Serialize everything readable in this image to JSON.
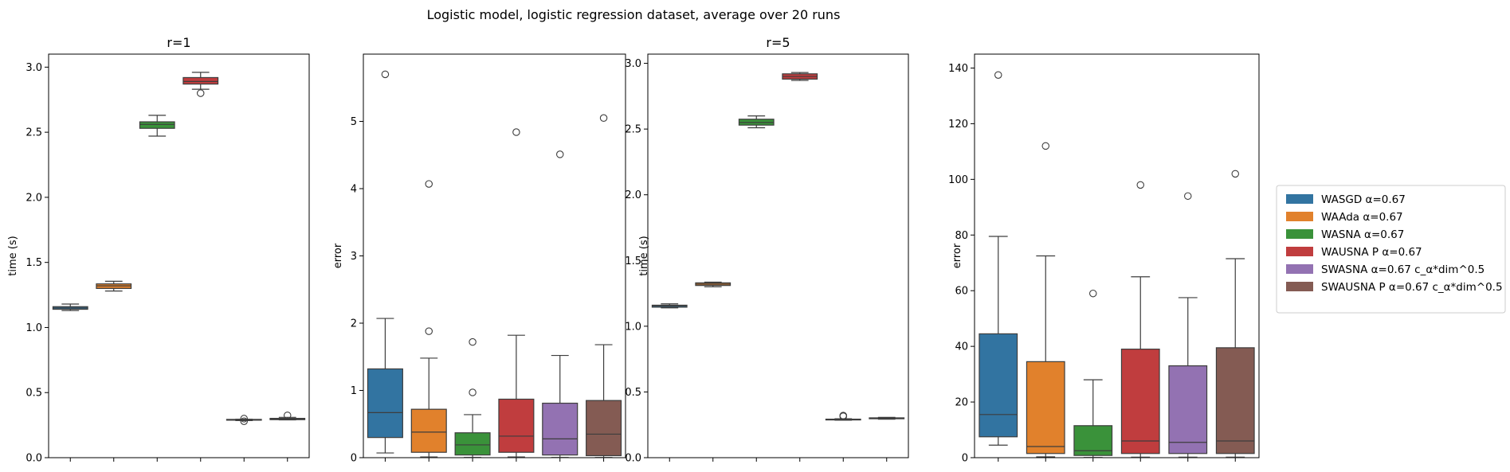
{
  "suptitle": "Logistic model, logistic regression dataset, average over 20 runs",
  "legend": {
    "placement": "right",
    "entries": [
      "WASGD α=0.67",
      "WAAda α=0.67",
      "WASNA α=0.67",
      "WAUSNA P α=0.67",
      "SWASNA α=0.67 c_α*dim^0.5",
      "SWAUSNA P α=0.67 c_α*dim^0.5"
    ]
  },
  "colors": [
    "#3274a1",
    "#e1812c",
    "#3a923a",
    "#c03d3e",
    "#9372b2",
    "#845b53"
  ],
  "chart_data": [
    {
      "type": "box",
      "title": "r=1",
      "xlabel": "",
      "ylabel": "time (s)",
      "ylim": [
        0,
        3.1
      ],
      "yticks": [
        0.0,
        0.5,
        1.0,
        1.5,
        2.0,
        2.5,
        3.0
      ],
      "tick_labels": [
        "0.0",
        "0.5",
        "1.0",
        "1.5",
        "2.0",
        "2.5",
        "3.0"
      ],
      "boxes": [
        {
          "whislo": 1.13,
          "q1": 1.14,
          "med": 1.15,
          "q3": 1.16,
          "whishi": 1.18,
          "fliers": []
        },
        {
          "whislo": 1.28,
          "q1": 1.3,
          "med": 1.32,
          "q3": 1.335,
          "whishi": 1.355,
          "fliers": []
        },
        {
          "whislo": 2.47,
          "q1": 2.53,
          "med": 2.56,
          "q3": 2.58,
          "whishi": 2.63,
          "fliers": []
        },
        {
          "whislo": 2.83,
          "q1": 2.87,
          "med": 2.89,
          "q3": 2.92,
          "whishi": 2.96,
          "fliers": [
            2.8
          ]
        },
        {
          "whislo": 0.285,
          "q1": 0.288,
          "med": 0.29,
          "q3": 0.292,
          "whishi": 0.295,
          "fliers": [
            0.3,
            0.28
          ]
        },
        {
          "whislo": 0.29,
          "q1": 0.292,
          "med": 0.297,
          "q3": 0.302,
          "whishi": 0.31,
          "fliers": [
            0.325
          ]
        }
      ]
    },
    {
      "type": "box",
      "title": "",
      "xlabel": "",
      "ylabel": "error",
      "ylim": [
        0,
        6.0
      ],
      "yticks": [
        0,
        1,
        2,
        3,
        4,
        5
      ],
      "tick_labels": [
        "0",
        "1",
        "2",
        "3",
        "4",
        "5"
      ],
      "boxes": [
        {
          "whislo": 0.07,
          "q1": 0.3,
          "med": 0.67,
          "q3": 1.32,
          "whishi": 2.07,
          "fliers": [
            5.7
          ]
        },
        {
          "whislo": 0.01,
          "q1": 0.08,
          "med": 0.38,
          "q3": 0.72,
          "whishi": 1.48,
          "fliers": [
            1.88,
            4.07
          ]
        },
        {
          "whislo": 0.005,
          "q1": 0.04,
          "med": 0.19,
          "q3": 0.37,
          "whishi": 0.64,
          "fliers": [
            0.97,
            1.72
          ]
        },
        {
          "whislo": 0.01,
          "q1": 0.08,
          "med": 0.32,
          "q3": 0.87,
          "whishi": 1.82,
          "fliers": [
            4.84
          ]
        },
        {
          "whislo": 0.005,
          "q1": 0.04,
          "med": 0.28,
          "q3": 0.81,
          "whishi": 1.52,
          "fliers": [
            4.51
          ]
        },
        {
          "whislo": 0.005,
          "q1": 0.03,
          "med": 0.35,
          "q3": 0.85,
          "whishi": 1.68,
          "fliers": [
            5.05
          ]
        }
      ]
    },
    {
      "type": "box",
      "title": "r=5",
      "xlabel": "",
      "ylabel": "time (s)",
      "ylim": [
        0,
        3.07
      ],
      "yticks": [
        0.0,
        0.5,
        1.0,
        1.5,
        2.0,
        2.5,
        3.0
      ],
      "tick_labels": [
        "0.0",
        "0.5",
        "1.0",
        "1.5",
        "2.0",
        "2.5",
        "3.0"
      ],
      "boxes": [
        {
          "whislo": 1.14,
          "q1": 1.145,
          "med": 1.155,
          "q3": 1.16,
          "whishi": 1.17,
          "fliers": []
        },
        {
          "whislo": 1.3,
          "q1": 1.31,
          "med": 1.32,
          "q3": 1.33,
          "whishi": 1.335,
          "fliers": []
        },
        {
          "whislo": 2.51,
          "q1": 2.53,
          "med": 2.55,
          "q3": 2.575,
          "whishi": 2.6,
          "fliers": []
        },
        {
          "whislo": 2.87,
          "q1": 2.88,
          "med": 2.9,
          "q3": 2.92,
          "whishi": 2.93,
          "fliers": []
        },
        {
          "whislo": 0.285,
          "q1": 0.287,
          "med": 0.29,
          "q3": 0.293,
          "whishi": 0.296,
          "fliers": [
            0.32,
            0.315
          ]
        },
        {
          "whislo": 0.293,
          "q1": 0.296,
          "med": 0.3,
          "q3": 0.303,
          "whishi": 0.307,
          "fliers": []
        }
      ]
    },
    {
      "type": "box",
      "title": "",
      "xlabel": "",
      "ylabel": "error",
      "ylim": [
        0,
        145
      ],
      "yticks": [
        0,
        20,
        40,
        60,
        80,
        100,
        120,
        140
      ],
      "tick_labels": [
        "0",
        "20",
        "40",
        "60",
        "80",
        "100",
        "120",
        "140"
      ],
      "boxes": [
        {
          "whislo": 4.5,
          "q1": 7.5,
          "med": 15.5,
          "q3": 44.5,
          "whishi": 79.5,
          "fliers": [
            137.5
          ]
        },
        {
          "whislo": 0.3,
          "q1": 1.5,
          "med": 4.0,
          "q3": 34.5,
          "whishi": 72.5,
          "fliers": [
            112
          ]
        },
        {
          "whislo": 0.1,
          "q1": 0.8,
          "med": 2.5,
          "q3": 11.5,
          "whishi": 28,
          "fliers": [
            59
          ]
        },
        {
          "whislo": 0.2,
          "q1": 1.5,
          "med": 6.0,
          "q3": 39,
          "whishi": 65,
          "fliers": [
            98
          ]
        },
        {
          "whislo": 0.2,
          "q1": 1.5,
          "med": 5.5,
          "q3": 33,
          "whishi": 57.5,
          "fliers": [
            94
          ]
        },
        {
          "whislo": 0.2,
          "q1": 1.5,
          "med": 6.0,
          "q3": 39.5,
          "whishi": 71.5,
          "fliers": [
            102
          ]
        }
      ]
    }
  ]
}
